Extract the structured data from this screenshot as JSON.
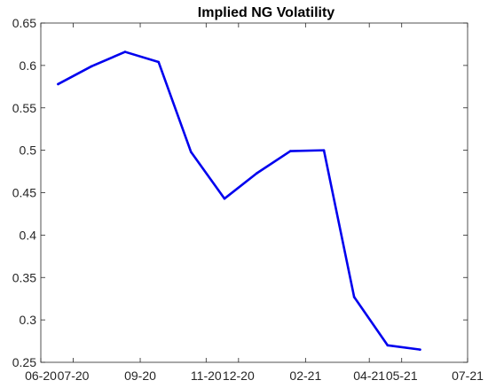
{
  "chart_data": {
    "type": "line",
    "title": "Implied NG  Volatility",
    "xlabel": "",
    "ylabel": "",
    "x_is_date": true,
    "xlim": [
      "2020-06-01",
      "2021-07-01"
    ],
    "ylim": [
      0.25,
      0.65
    ],
    "x_ticks": [
      "2020-06-01",
      "2020-07-01",
      "2020-09-01",
      "2020-11-01",
      "2020-12-01",
      "2021-02-01",
      "2021-04-01",
      "2021-05-01",
      "2021-07-01"
    ],
    "x_tick_labels": [
      "06-20",
      "07-20",
      "09-20",
      "11-20",
      "12-20",
      "02-21",
      "04-21",
      "05-21",
      "07-21"
    ],
    "y_ticks": [
      0.25,
      0.3,
      0.35,
      0.4,
      0.45,
      0.5,
      0.55,
      0.6,
      0.65
    ],
    "y_tick_labels": [
      "0.25",
      "0.3",
      "0.35",
      "0.4",
      "0.45",
      "0.5",
      "0.55",
      "0.6",
      "0.65"
    ],
    "grid": false,
    "box": true,
    "series": [
      {
        "color": "#0000ee",
        "x": [
          "2020-06-17",
          "2020-07-18",
          "2020-08-18",
          "2020-09-18",
          "2020-10-18",
          "2020-11-18",
          "2020-12-18",
          "2021-01-18",
          "2021-02-18",
          "2021-03-18",
          "2021-04-18",
          "2021-05-18"
        ],
        "y": [
          0.578,
          0.599,
          0.616,
          0.604,
          0.498,
          0.443,
          0.473,
          0.499,
          0.5,
          0.327,
          0.27,
          0.265
        ]
      }
    ]
  }
}
